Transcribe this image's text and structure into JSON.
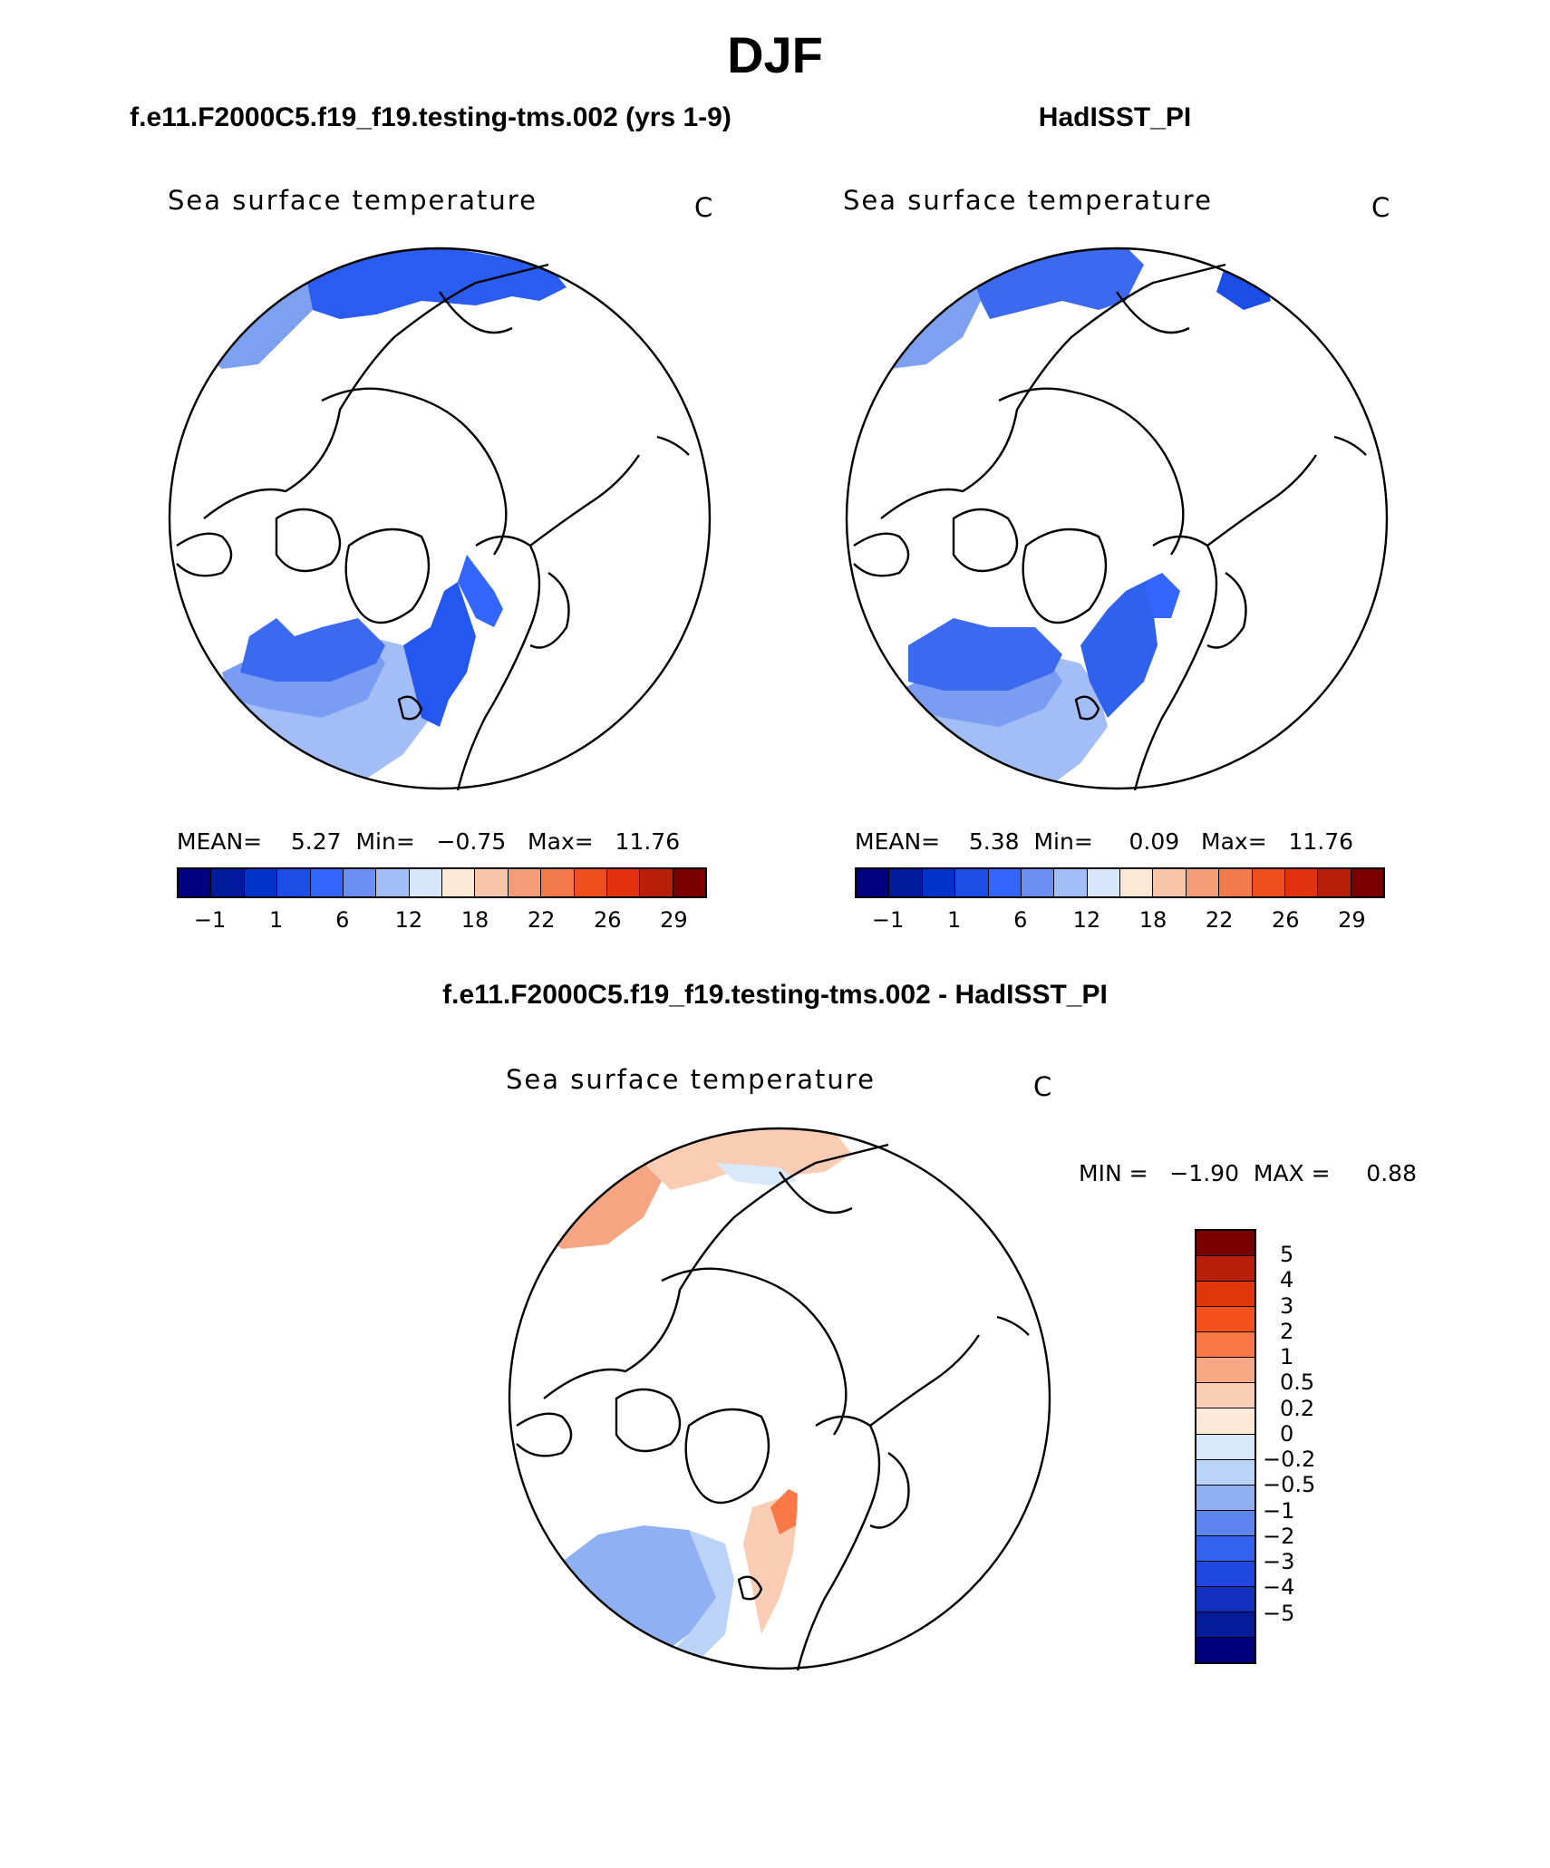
{
  "figure": {
    "title": "DJF"
  },
  "panels": {
    "model": {
      "title": "f.e11.F2000C5.f19_f19.testing-tms.002 (yrs 1-9)",
      "variable": "Sea surface temperature",
      "unit": "C",
      "stats_text": "MEAN=    5.27  Min=   −0.75   Max=   11.76",
      "mean": 5.27,
      "min": -0.75,
      "max": 11.76
    },
    "obs": {
      "title": "HadISST_PI",
      "variable": "Sea surface temperature",
      "unit": "C",
      "stats_text": "MEAN=    5.38  Min=     0.09   Max=   11.76",
      "mean": 5.38,
      "min": 0.09,
      "max": 11.76
    },
    "diff": {
      "title": "f.e11.F2000C5.f19_f19.testing-tms.002 - HadISST_PI",
      "variable": "Sea surface temperature",
      "unit": "C",
      "stats_text": "MIN =   −1.90  MAX =     0.88",
      "min": -1.9,
      "max": 0.88
    }
  },
  "colorbar_abs": {
    "colors": [
      "#000080",
      "#001a9e",
      "#0033cc",
      "#1a4ee6",
      "#3366ff",
      "#6b8ef5",
      "#a3bdf7",
      "#d6e6fb",
      "#fde8d6",
      "#f9c5a8",
      "#f59d77",
      "#f27a4b",
      "#f04f1d",
      "#e23210",
      "#b81e08",
      "#7a0000"
    ],
    "tick_labels": [
      "−1",
      "1",
      "6",
      "12",
      "18",
      "22",
      "26",
      "29"
    ]
  },
  "colorbar_diff": {
    "colors": [
      "#7a0000",
      "#b81e08",
      "#e0360a",
      "#f5501a",
      "#fa7845",
      "#f8a884",
      "#f9ccb3",
      "#fde9d8",
      "#d8e8fb",
      "#bcd3f8",
      "#8fb0f3",
      "#5d85ef",
      "#3362ee",
      "#1f49e0",
      "#102fbd",
      "#041c99",
      "#00007a"
    ],
    "tick_labels": [
      "5",
      "4",
      "3",
      "2",
      "1",
      "0.5",
      "0.2",
      "0",
      "−0.2",
      "−0.5",
      "−1",
      "−2",
      "−3",
      "−4",
      "−5"
    ]
  }
}
